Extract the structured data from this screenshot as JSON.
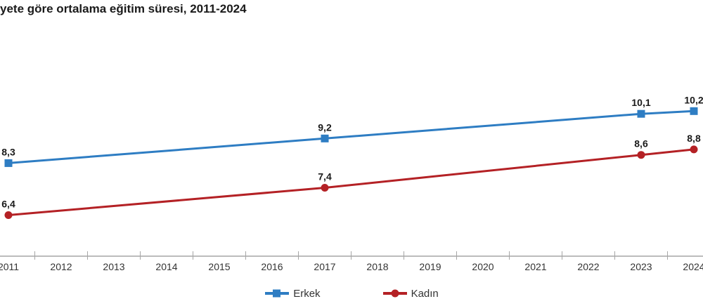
{
  "page": {
    "title": "yete göre ortalama eğitim süresi, 2011-2024"
  },
  "colors": {
    "erkek_blue": "#2e7dc3",
    "kadin_red": "#b42125",
    "axis_gray": "#a6a6a6",
    "tick_label_text": "#333333",
    "data_label_text": "#1a1a1a"
  },
  "chart_data": {
    "type": "line",
    "title": "yete göre ortalama eğitim süresi, 2011-2024",
    "x_categories": [
      "2011",
      "2012",
      "2013",
      "2014",
      "2015",
      "2016",
      "2017",
      "2018",
      "2019",
      "2020",
      "2021",
      "2022",
      "2023",
      "2024"
    ],
    "x_range": [
      2011,
      2024
    ],
    "y_axis_visible": false,
    "grid": false,
    "legend_position": "bottom",
    "value_labels_shown": [
      "2011",
      "2017",
      "2023",
      "2024"
    ],
    "series": [
      {
        "name": "Erkek",
        "color": "#2e7dc3",
        "marker": "square",
        "points": [
          {
            "year": 2011,
            "value": 8.3,
            "label": "8,3"
          },
          {
            "year": 2017,
            "value": 9.2,
            "label": "9,2"
          },
          {
            "year": 2023,
            "value": 10.1,
            "label": "10,1"
          },
          {
            "year": 2024,
            "value": 10.2,
            "label": "10,2"
          }
        ]
      },
      {
        "name": "Kadın",
        "color": "#b42125",
        "marker": "circle",
        "points": [
          {
            "year": 2011,
            "value": 6.4,
            "label": "6,4"
          },
          {
            "year": 2017,
            "value": 7.4,
            "label": "7,4"
          },
          {
            "year": 2023,
            "value": 8.6,
            "label": "8,6"
          },
          {
            "year": 2024,
            "value": 8.8,
            "label": "8,8"
          }
        ]
      }
    ]
  }
}
